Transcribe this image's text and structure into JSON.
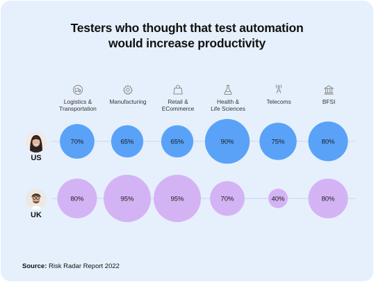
{
  "page": {
    "title_line1": "Testers who thought that test automation",
    "title_line2": "would increase productivity",
    "source_label": "Source:",
    "source_text": "Risk Radar Report 2022"
  },
  "colors": {
    "background": "#e6f0fc",
    "us": "#5aa2f8",
    "uk": "#d4b3f5",
    "line": "#c8d6ec"
  },
  "chart_data": {
    "type": "bubble",
    "title": "Testers who thought that test automation would increase productivity",
    "categories": [
      "Logistics &\nTransportation",
      "Manufacturing",
      "Retail &\nECommerce",
      "Health &\nLife Sciences",
      "Telecoms",
      "BFSI"
    ],
    "category_icons": [
      "truck-icon",
      "gear-icon",
      "shopping-bag-icon",
      "flask-icon",
      "antenna-icon",
      "bank-icon"
    ],
    "series": [
      {
        "name": "US",
        "values": [
          70,
          65,
          65,
          90,
          75,
          80
        ],
        "labels": [
          "70%",
          "65%",
          "65%",
          "90%",
          "75%",
          "80%"
        ],
        "color": "#5aa2f8"
      },
      {
        "name": "UK",
        "values": [
          80,
          95,
          95,
          70,
          40,
          80
        ],
        "labels": [
          "80%",
          "95%",
          "95%",
          "70%",
          "40%",
          "80%"
        ],
        "color": "#d4b3f5"
      }
    ],
    "unit": "%"
  }
}
